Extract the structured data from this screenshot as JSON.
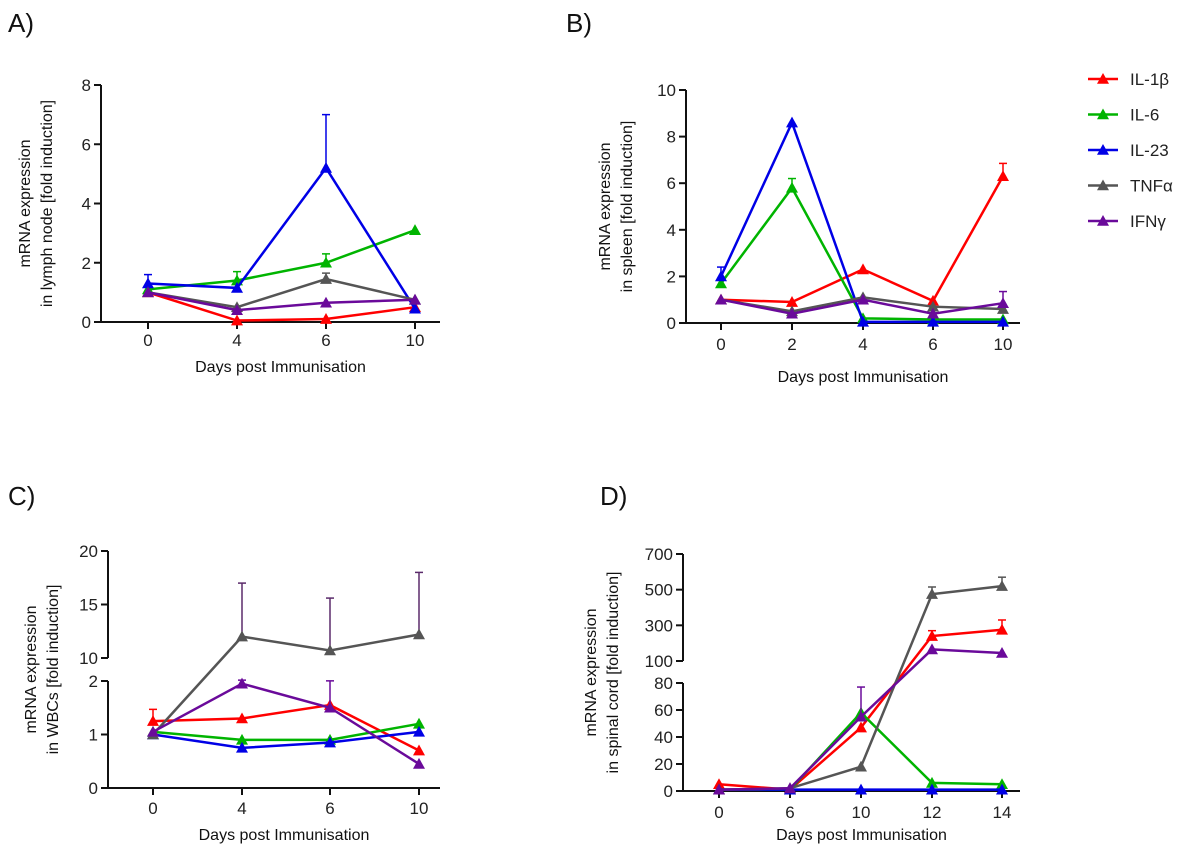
{
  "legend": [
    {
      "name": "IL-1β",
      "color": "#ff0000"
    },
    {
      "name": "IL-6",
      "color": "#00b400"
    },
    {
      "name": "IL-23",
      "color": "#0000e6"
    },
    {
      "name": "TNFα",
      "color": "#555555"
    },
    {
      "name": "IFNγ",
      "color": "#6a0a9a"
    }
  ],
  "chart_data": [
    {
      "panel": "A)",
      "type": "line",
      "xlabel": "Days post Immunisation",
      "ylabel": [
        "mRNA expression",
        "in lymph node [fold induction]"
      ],
      "x": [
        0,
        4,
        6,
        10
      ],
      "xticks": [
        "0",
        "4",
        "6",
        "10"
      ],
      "ylim": [
        0,
        8
      ],
      "yticks": [
        0,
        2,
        4,
        6,
        8
      ],
      "series": [
        {
          "name": "IL-1β",
          "values": [
            1.0,
            0.05,
            0.1,
            0.5
          ]
        },
        {
          "name": "IL-6",
          "values": [
            1.1,
            1.4,
            2.0,
            3.1
          ],
          "err": [
            0,
            0.3,
            0.3,
            0
          ]
        },
        {
          "name": "IL-23",
          "values": [
            1.3,
            1.15,
            5.2,
            0.45
          ],
          "err": [
            0.3,
            0,
            1.8,
            0
          ]
        },
        {
          "name": "TNFα",
          "values": [
            1.0,
            0.5,
            1.45,
            0.75
          ],
          "err": [
            0,
            0,
            0.2,
            0
          ]
        },
        {
          "name": "IFNγ",
          "values": [
            1.0,
            0.4,
            0.65,
            0.75
          ]
        }
      ]
    },
    {
      "panel": "B)",
      "type": "line",
      "xlabel": "Days post Immunisation",
      "ylabel": [
        "mRNA expression",
        "in spleen [fold induction]"
      ],
      "x": [
        0,
        2,
        4,
        6,
        10
      ],
      "xticks": [
        "0",
        "2",
        "4",
        "6",
        "10"
      ],
      "ylim": [
        0,
        10
      ],
      "yticks": [
        0,
        2,
        4,
        6,
        8,
        10
      ],
      "series": [
        {
          "name": "IL-1β",
          "values": [
            1.0,
            0.9,
            2.3,
            0.95,
            6.3
          ],
          "err": [
            0,
            0,
            0,
            0,
            0.55
          ]
        },
        {
          "name": "IL-6",
          "values": [
            1.7,
            5.8,
            0.2,
            0.15,
            0.15
          ],
          "err": [
            0,
            0.4,
            0,
            0,
            0
          ]
        },
        {
          "name": "IL-23",
          "values": [
            2.0,
            8.6,
            0.05,
            0.05,
            0.05
          ],
          "err": [
            0.4,
            0,
            0,
            0,
            0
          ]
        },
        {
          "name": "TNFα",
          "values": [
            1.0,
            0.5,
            1.1,
            0.7,
            0.6
          ]
        },
        {
          "name": "IFNγ",
          "values": [
            1.0,
            0.4,
            1.0,
            0.4,
            0.85
          ],
          "err": [
            0,
            0,
            0,
            0,
            0.5
          ]
        }
      ]
    },
    {
      "panel": "C)",
      "type": "line",
      "xlabel": "Days post Immunisation",
      "ylabel": [
        "mRNA expression",
        "in WBCs [fold induction]"
      ],
      "x": [
        0,
        4,
        6,
        10
      ],
      "xticks": [
        "0",
        "4",
        "6",
        "10"
      ],
      "ylim_lower": [
        0,
        2
      ],
      "yticks_lower": [
        0,
        1,
        2
      ],
      "ylim_upper": [
        10,
        20
      ],
      "yticks_upper": [
        10,
        15,
        20
      ],
      "broken_axis": true,
      "series": [
        {
          "name": "IL-1β",
          "values": [
            1.25,
            1.3,
            1.55,
            0.7
          ],
          "err": [
            0.22,
            0,
            0,
            0
          ]
        },
        {
          "name": "IL-6",
          "values": [
            1.05,
            0.9,
            0.9,
            1.2
          ]
        },
        {
          "name": "IL-23",
          "values": [
            1.0,
            0.75,
            0.85,
            1.05
          ]
        },
        {
          "name": "TNFα",
          "values": [
            1.0,
            12.0,
            10.7,
            12.2
          ],
          "err": [
            0,
            5.0,
            4.9,
            5.8
          ]
        },
        {
          "name": "IFNγ",
          "values": [
            1.05,
            1.95,
            1.5,
            0.45
          ],
          "err": [
            0,
            0.35,
            0.55,
            0
          ]
        }
      ]
    },
    {
      "panel": "D)",
      "type": "line",
      "xlabel": "Days post Immunisation",
      "ylabel": [
        "mRNA expression",
        "in spinal cord [fold induction]"
      ],
      "x": [
        0,
        6,
        10,
        12,
        14
      ],
      "xticks": [
        "0",
        "6",
        "10",
        "12",
        "14"
      ],
      "ylim_lower": [
        0,
        80
      ],
      "yticks_lower": [
        0,
        20,
        40,
        60,
        80
      ],
      "ylim_upper": [
        100,
        700
      ],
      "yticks_upper": [
        100,
        300,
        500,
        700
      ],
      "broken_axis": true,
      "series": [
        {
          "name": "IL-1β",
          "values": [
            5,
            1,
            47,
            240,
            275
          ],
          "err": [
            0,
            0,
            0,
            30,
            55
          ]
        },
        {
          "name": "IL-6",
          "values": [
            1,
            1,
            58,
            6,
            5
          ]
        },
        {
          "name": "IL-23",
          "values": [
            1,
            1,
            1,
            1,
            1
          ]
        },
        {
          "name": "TNFα",
          "values": [
            1,
            2,
            18,
            475,
            520
          ],
          "err": [
            0,
            0,
            0,
            40,
            50
          ]
        },
        {
          "name": "IFNγ",
          "values": [
            1,
            2,
            55,
            165,
            145
          ],
          "err": [
            0,
            0,
            22,
            0,
            0
          ]
        }
      ]
    }
  ]
}
